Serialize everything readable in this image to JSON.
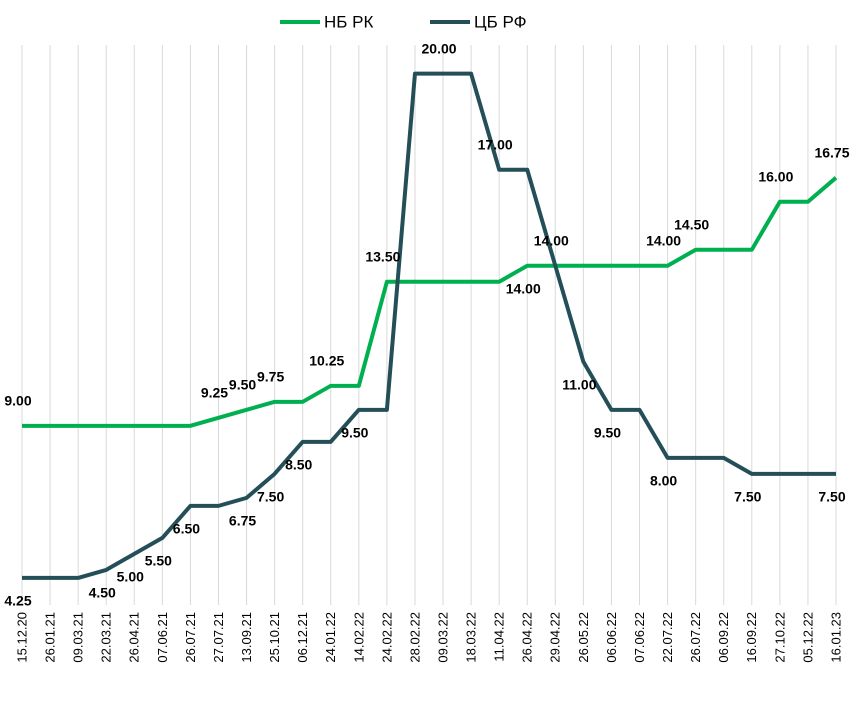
{
  "chart_data": {
    "type": "line",
    "categories": [
      "15.12.20",
      "26.01.21",
      "09.03.21",
      "22.03.21",
      "26.04.21",
      "07.06.21",
      "26.07.21",
      "27.07.21",
      "13.09.21",
      "25.10.21",
      "06.12.21",
      "24.01.22",
      "14.02.22",
      "24.02.22",
      "28.02.22",
      "09.03.22",
      "18.03.22",
      "11.04.22",
      "26.04.22",
      "29.04.22",
      "26.05.22",
      "06.06.22",
      "07.06.22",
      "22.07.22",
      "26.07.22",
      "06.09.22",
      "16.09.22",
      "27.10.22",
      "05.12.22",
      "16.01.23"
    ],
    "series": [
      {
        "name": "НБ РК",
        "color": "#00b050",
        "values": [
          9,
          9,
          9,
          9,
          9,
          9,
          9,
          9.25,
          9.5,
          9.75,
          9.75,
          10.25,
          10.25,
          13.5,
          13.5,
          13.5,
          13.5,
          13.5,
          14,
          14,
          14,
          14,
          14,
          14,
          14.5,
          14.5,
          14.5,
          16,
          16,
          16.75
        ],
        "value_labels": [
          "9.00",
          null,
          null,
          null,
          null,
          null,
          null,
          "9.25",
          "9.50",
          "9.75",
          null,
          "10.25",
          null,
          "13.50",
          null,
          null,
          null,
          null,
          "14.00",
          null,
          null,
          null,
          null,
          "14.00",
          "14.50",
          null,
          null,
          "16.00",
          null,
          "16.75"
        ]
      },
      {
        "name": "ЦБ РФ",
        "color": "#244f59",
        "values": [
          4.25,
          4.25,
          4.25,
          4.5,
          5,
          5.5,
          6.5,
          6.5,
          6.75,
          7.5,
          8.5,
          8.5,
          9.5,
          9.5,
          20,
          20,
          20,
          17,
          17,
          14,
          11,
          9.5,
          9.5,
          8,
          8,
          8,
          7.5,
          7.5,
          7.5,
          7.5
        ],
        "value_labels": [
          "4.25",
          null,
          null,
          "4.50",
          "5.00",
          "5.50",
          "6.50",
          null,
          "6.75",
          "7.50",
          "8.50",
          null,
          "9.50",
          null,
          null,
          "20.00",
          null,
          "17.00",
          null,
          "14.00",
          "11.00",
          "9.50",
          null,
          "8.00",
          null,
          null,
          "7.50",
          null,
          null,
          "7.50"
        ]
      }
    ],
    "ylim": [
      0,
      22.3
    ],
    "grid": true,
    "legend": "top"
  }
}
